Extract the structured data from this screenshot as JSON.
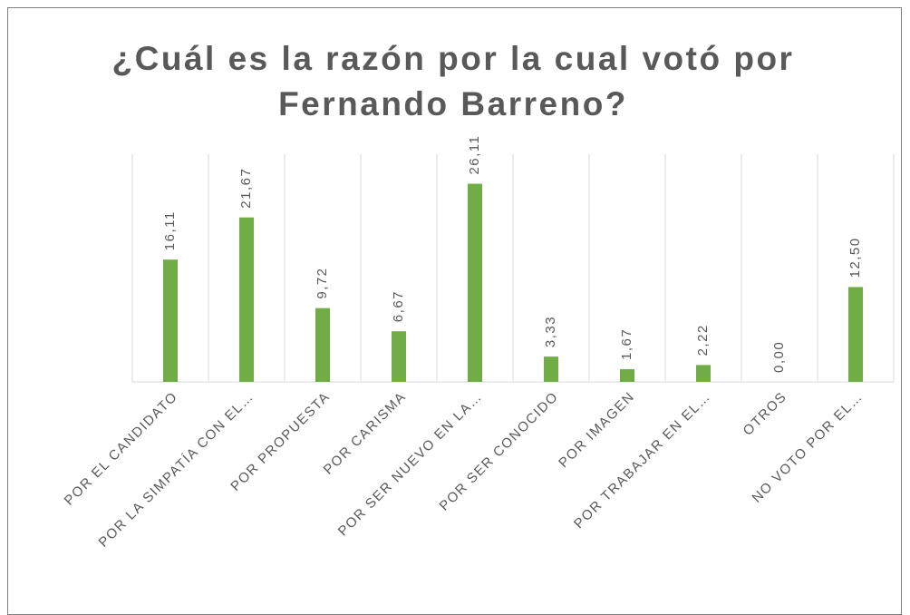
{
  "chart_data": {
    "type": "bar",
    "title": "¿Cuál es la razón por la cual votó por Fernando Barreno?",
    "categories": [
      "POR EL CANDIDATO",
      "POR LA SIMPATÍA CON EL…",
      "POR PROPUESTA",
      "POR CARISMA",
      "POR SER NUEVO EN LA…",
      "POR SER CONOCIDO",
      "POR IMAGEN",
      "POR TRABAJAR EN EL…",
      "OTROS",
      "NO VOTO POR EL…"
    ],
    "values": [
      16.11,
      21.67,
      9.72,
      6.67,
      26.11,
      3.33,
      1.67,
      2.22,
      0,
      12.5
    ],
    "value_labels": [
      "16,11",
      "21,67",
      "9,72",
      "6,67",
      "26,11",
      "3,33",
      "1,67",
      "2,22",
      "0,00",
      "12,50"
    ],
    "color": "#70ad47",
    "ylim": [
      0,
      30
    ],
    "grid": true
  }
}
